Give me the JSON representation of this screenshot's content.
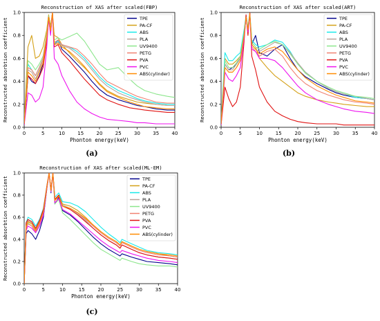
{
  "panel_captions": [
    "(a)",
    "(b)",
    "(c)"
  ],
  "series_colors": {
    "TPE": "#00008b",
    "PA-CF": "#d4a017",
    "ABS": "#17e8e8",
    "PLA": "#b8a39a",
    "UV9400": "#8ce68c",
    "PETG": "#f08070",
    "PVA": "#e01010",
    "PVC": "#ee11ee",
    "ABS(cylinder)": "#ff8c00"
  },
  "chart_data": [
    {
      "type": "line",
      "title": "Reconstruction of XAS after scaled(FBP)",
      "xlabel": "Phonton energy(keV)",
      "ylabel": "Reconstructed absorbtion coefficient",
      "xlim": [
        0,
        40
      ],
      "ylim": [
        0,
        1.0
      ],
      "xticks": [
        0,
        5,
        10,
        15,
        20,
        25,
        30,
        35,
        40
      ],
      "yticks": [
        0.0,
        0.2,
        0.4,
        0.6,
        0.8,
        1.0
      ],
      "legend": "top-right",
      "x": [
        0,
        1,
        2,
        3,
        4,
        5,
        6,
        6.5,
        7,
        7.5,
        8,
        9,
        10,
        12,
        14,
        16,
        18,
        20,
        22,
        25,
        28,
        30,
        32,
        35,
        38,
        40
      ],
      "series": [
        {
          "name": "TPE",
          "values": [
            0.02,
            0.45,
            0.4,
            0.38,
            0.45,
            0.55,
            0.75,
            0.95,
            0.82,
            0.99,
            0.72,
            0.76,
            0.68,
            0.62,
            0.55,
            0.48,
            0.4,
            0.33,
            0.28,
            0.24,
            0.21,
            0.19,
            0.18,
            0.16,
            0.15,
            0.15
          ]
        },
        {
          "name": "PA-CF",
          "values": [
            0.05,
            0.7,
            0.8,
            0.6,
            0.62,
            0.7,
            0.85,
            0.98,
            0.88,
            1.0,
            0.8,
            0.78,
            0.72,
            0.65,
            0.58,
            0.52,
            0.45,
            0.38,
            0.32,
            0.27,
            0.24,
            0.22,
            0.21,
            0.2,
            0.19,
            0.19
          ]
        },
        {
          "name": "ABS",
          "values": [
            0.03,
            0.55,
            0.5,
            0.45,
            0.52,
            0.6,
            0.8,
            0.97,
            0.85,
            1.0,
            0.74,
            0.75,
            0.72,
            0.7,
            0.66,
            0.6,
            0.52,
            0.44,
            0.38,
            0.32,
            0.28,
            0.25,
            0.23,
            0.21,
            0.2,
            0.2
          ]
        },
        {
          "name": "PLA",
          "values": [
            0.03,
            0.5,
            0.48,
            0.42,
            0.5,
            0.58,
            0.78,
            0.96,
            0.84,
            1.0,
            0.73,
            0.74,
            0.71,
            0.69,
            0.64,
            0.58,
            0.5,
            0.42,
            0.36,
            0.3,
            0.26,
            0.24,
            0.22,
            0.2,
            0.19,
            0.19
          ]
        },
        {
          "name": "UV9400",
          "values": [
            0.04,
            0.58,
            0.55,
            0.5,
            0.55,
            0.62,
            0.82,
            0.97,
            0.86,
            1.0,
            0.76,
            0.78,
            0.76,
            0.79,
            0.82,
            0.75,
            0.65,
            0.55,
            0.5,
            0.52,
            0.42,
            0.36,
            0.32,
            0.29,
            0.27,
            0.26
          ]
        },
        {
          "name": "PETG",
          "values": [
            0.03,
            0.52,
            0.5,
            0.45,
            0.52,
            0.6,
            0.8,
            0.96,
            0.85,
            1.0,
            0.74,
            0.76,
            0.72,
            0.7,
            0.68,
            0.62,
            0.55,
            0.47,
            0.4,
            0.35,
            0.3,
            0.27,
            0.25,
            0.22,
            0.21,
            0.21
          ]
        },
        {
          "name": "PVA",
          "values": [
            0.02,
            0.45,
            0.42,
            0.38,
            0.44,
            0.52,
            0.75,
            0.96,
            0.83,
            1.0,
            0.7,
            0.72,
            0.65,
            0.58,
            0.5,
            0.42,
            0.35,
            0.28,
            0.24,
            0.2,
            0.17,
            0.16,
            0.15,
            0.14,
            0.13,
            0.13
          ]
        },
        {
          "name": "PVC",
          "values": [
            0.02,
            0.3,
            0.28,
            0.22,
            0.25,
            0.35,
            0.7,
            0.95,
            0.8,
            1.0,
            0.6,
            0.55,
            0.45,
            0.32,
            0.22,
            0.16,
            0.12,
            0.09,
            0.07,
            0.06,
            0.05,
            0.04,
            0.04,
            0.03,
            0.03,
            0.03
          ]
        },
        {
          "name": "ABS(cylinder)",
          "values": [
            0.03,
            0.48,
            0.45,
            0.4,
            0.48,
            0.56,
            0.78,
            0.96,
            0.84,
            1.0,
            0.72,
            0.73,
            0.7,
            0.66,
            0.6,
            0.53,
            0.45,
            0.37,
            0.31,
            0.26,
            0.22,
            0.2,
            0.18,
            0.17,
            0.16,
            0.16
          ]
        }
      ]
    },
    {
      "type": "line",
      "title": "Reconstruction of XAS after scaled(ART)",
      "xlabel": "Phonton energy(keV)",
      "ylabel": "Reconstructed absorbtion coefficient",
      "xlim": [
        0,
        40
      ],
      "ylim": [
        0,
        1.0
      ],
      "xticks": [
        0,
        5,
        10,
        15,
        20,
        25,
        30,
        35,
        40
      ],
      "yticks": [
        0.0,
        0.2,
        0.4,
        0.6,
        0.8,
        1.0
      ],
      "legend": "top-right",
      "x": [
        0,
        1,
        2,
        3,
        4,
        5,
        6,
        6.5,
        7,
        7.5,
        8,
        9,
        10,
        12,
        14,
        16,
        18,
        20,
        22,
        25,
        28,
        30,
        32,
        35,
        38,
        40
      ],
      "series": [
        {
          "name": "TPE",
          "values": [
            0.03,
            0.55,
            0.5,
            0.52,
            0.55,
            0.6,
            0.8,
            0.97,
            0.85,
            0.99,
            0.72,
            0.8,
            0.65,
            0.62,
            0.68,
            0.72,
            0.6,
            0.5,
            0.44,
            0.38,
            0.33,
            0.3,
            0.28,
            0.26,
            0.25,
            0.24
          ]
        },
        {
          "name": "PA-CF",
          "values": [
            0.04,
            0.6,
            0.55,
            0.55,
            0.58,
            0.62,
            0.82,
            0.96,
            0.86,
            0.99,
            0.74,
            0.7,
            0.6,
            0.52,
            0.45,
            0.4,
            0.35,
            0.3,
            0.27,
            0.24,
            0.22,
            0.21,
            0.2,
            0.19,
            0.18,
            0.18
          ]
        },
        {
          "name": "ABS",
          "values": [
            0.04,
            0.65,
            0.58,
            0.58,
            0.62,
            0.65,
            0.85,
            0.97,
            0.87,
            1.0,
            0.76,
            0.72,
            0.7,
            0.72,
            0.76,
            0.74,
            0.66,
            0.55,
            0.48,
            0.4,
            0.34,
            0.31,
            0.29,
            0.26,
            0.25,
            0.24
          ]
        },
        {
          "name": "PLA",
          "values": [
            0.03,
            0.55,
            0.5,
            0.5,
            0.55,
            0.6,
            0.8,
            0.96,
            0.85,
            0.99,
            0.72,
            0.68,
            0.66,
            0.7,
            0.74,
            0.72,
            0.65,
            0.56,
            0.48,
            0.4,
            0.34,
            0.31,
            0.29,
            0.27,
            0.25,
            0.24
          ]
        },
        {
          "name": "UV9400",
          "values": [
            0.04,
            0.58,
            0.52,
            0.52,
            0.56,
            0.62,
            0.82,
            0.96,
            0.86,
            1.0,
            0.74,
            0.7,
            0.68,
            0.72,
            0.75,
            0.72,
            0.64,
            0.55,
            0.47,
            0.4,
            0.35,
            0.32,
            0.3,
            0.27,
            0.26,
            0.25
          ]
        },
        {
          "name": "PETG",
          "values": [
            0.03,
            0.52,
            0.48,
            0.48,
            0.52,
            0.58,
            0.8,
            0.96,
            0.84,
            0.99,
            0.7,
            0.66,
            0.62,
            0.66,
            0.68,
            0.62,
            0.52,
            0.44,
            0.38,
            0.32,
            0.28,
            0.26,
            0.24,
            0.22,
            0.21,
            0.2
          ]
        },
        {
          "name": "PVA",
          "values": [
            0.02,
            0.35,
            0.25,
            0.18,
            0.22,
            0.35,
            0.75,
            0.98,
            0.8,
            1.0,
            0.62,
            0.5,
            0.35,
            0.22,
            0.14,
            0.1,
            0.07,
            0.05,
            0.04,
            0.03,
            0.03,
            0.03,
            0.02,
            0.02,
            0.02,
            0.02
          ]
        },
        {
          "name": "PVC",
          "values": [
            0.02,
            0.48,
            0.42,
            0.4,
            0.45,
            0.52,
            0.78,
            0.96,
            0.83,
            0.99,
            0.68,
            0.66,
            0.6,
            0.6,
            0.58,
            0.52,
            0.44,
            0.36,
            0.3,
            0.24,
            0.2,
            0.18,
            0.16,
            0.14,
            0.13,
            0.12
          ]
        },
        {
          "name": "ABS(cylinder)",
          "values": [
            0.03,
            0.52,
            0.48,
            0.48,
            0.52,
            0.58,
            0.8,
            0.96,
            0.85,
            0.99,
            0.72,
            0.68,
            0.64,
            0.68,
            0.7,
            0.66,
            0.58,
            0.5,
            0.43,
            0.36,
            0.31,
            0.28,
            0.26,
            0.23,
            0.22,
            0.21
          ]
        }
      ]
    },
    {
      "type": "line",
      "title": "Reconstruction of XAS after scaled(ML-EM)",
      "xlabel": "Phonton energy(keV)",
      "ylabel": "Reconstructed absorbtion coefficient",
      "xlim": [
        0,
        40
      ],
      "ylim": [
        0,
        1.0
      ],
      "xticks": [
        0,
        5,
        10,
        15,
        20,
        25,
        30,
        35,
        40
      ],
      "yticks": [
        0.0,
        0.2,
        0.4,
        0.6,
        0.8,
        1.0
      ],
      "legend": "top-right",
      "x": [
        0,
        0.5,
        1,
        2,
        3,
        4,
        5,
        6,
        6.5,
        7,
        7.5,
        8,
        9,
        10,
        12,
        14,
        16,
        18,
        20,
        22,
        24,
        25,
        25.5,
        28,
        30,
        32,
        35,
        38,
        40
      ],
      "series": [
        {
          "name": "TPE",
          "values": [
            0.0,
            0.45,
            0.48,
            0.45,
            0.4,
            0.48,
            0.6,
            0.88,
            1.0,
            0.82,
            1.0,
            0.72,
            0.78,
            0.66,
            0.62,
            0.56,
            0.49,
            0.42,
            0.36,
            0.31,
            0.27,
            0.25,
            0.27,
            0.24,
            0.22,
            0.2,
            0.19,
            0.18,
            0.17
          ]
        },
        {
          "name": "PA-CF",
          "values": [
            0.0,
            0.52,
            0.56,
            0.54,
            0.48,
            0.55,
            0.65,
            0.9,
            1.0,
            0.84,
            1.0,
            0.76,
            0.8,
            0.72,
            0.7,
            0.66,
            0.6,
            0.53,
            0.47,
            0.42,
            0.38,
            0.35,
            0.38,
            0.34,
            0.31,
            0.29,
            0.27,
            0.25,
            0.24
          ]
        },
        {
          "name": "ABS",
          "values": [
            0.0,
            0.55,
            0.6,
            0.58,
            0.52,
            0.58,
            0.68,
            0.9,
            1.0,
            0.85,
            1.0,
            0.78,
            0.82,
            0.74,
            0.73,
            0.7,
            0.65,
            0.58,
            0.51,
            0.45,
            0.4,
            0.37,
            0.4,
            0.36,
            0.33,
            0.3,
            0.28,
            0.27,
            0.26
          ]
        },
        {
          "name": "PLA",
          "values": [
            0.0,
            0.53,
            0.57,
            0.55,
            0.49,
            0.56,
            0.66,
            0.89,
            1.0,
            0.84,
            1.0,
            0.76,
            0.8,
            0.71,
            0.68,
            0.63,
            0.57,
            0.5,
            0.44,
            0.39,
            0.35,
            0.32,
            0.35,
            0.31,
            0.28,
            0.26,
            0.24,
            0.23,
            0.22
          ]
        },
        {
          "name": "UV9400",
          "values": [
            0.0,
            0.5,
            0.55,
            0.52,
            0.46,
            0.52,
            0.62,
            0.88,
            1.0,
            0.83,
            1.0,
            0.72,
            0.76,
            0.64,
            0.58,
            0.51,
            0.44,
            0.37,
            0.31,
            0.27,
            0.23,
            0.21,
            0.23,
            0.2,
            0.18,
            0.17,
            0.16,
            0.16,
            0.15
          ]
        },
        {
          "name": "PETG",
          "values": [
            0.0,
            0.5,
            0.54,
            0.52,
            0.47,
            0.54,
            0.64,
            0.89,
            1.0,
            0.84,
            1.0,
            0.75,
            0.8,
            0.7,
            0.68,
            0.64,
            0.58,
            0.52,
            0.46,
            0.41,
            0.37,
            0.34,
            0.37,
            0.33,
            0.3,
            0.28,
            0.26,
            0.25,
            0.24
          ]
        },
        {
          "name": "PVA",
          "values": [
            0.0,
            0.55,
            0.58,
            0.56,
            0.5,
            0.57,
            0.67,
            0.9,
            1.0,
            0.85,
            1.0,
            0.76,
            0.8,
            0.7,
            0.67,
            0.62,
            0.56,
            0.5,
            0.44,
            0.39,
            0.35,
            0.32,
            0.35,
            0.31,
            0.28,
            0.26,
            0.24,
            0.23,
            0.22
          ]
        },
        {
          "name": "PVC",
          "values": [
            0.0,
            0.48,
            0.52,
            0.5,
            0.46,
            0.52,
            0.62,
            0.88,
            1.0,
            0.83,
            1.0,
            0.73,
            0.77,
            0.67,
            0.63,
            0.57,
            0.51,
            0.45,
            0.39,
            0.34,
            0.3,
            0.28,
            0.3,
            0.27,
            0.25,
            0.23,
            0.21,
            0.2,
            0.19
          ]
        },
        {
          "name": "ABS(cylinder)",
          "values": [
            0.0,
            0.52,
            0.56,
            0.54,
            0.48,
            0.55,
            0.65,
            0.89,
            1.0,
            0.84,
            1.0,
            0.75,
            0.79,
            0.7,
            0.68,
            0.64,
            0.59,
            0.53,
            0.47,
            0.42,
            0.38,
            0.35,
            0.38,
            0.34,
            0.31,
            0.29,
            0.27,
            0.26,
            0.25
          ]
        }
      ]
    }
  ]
}
